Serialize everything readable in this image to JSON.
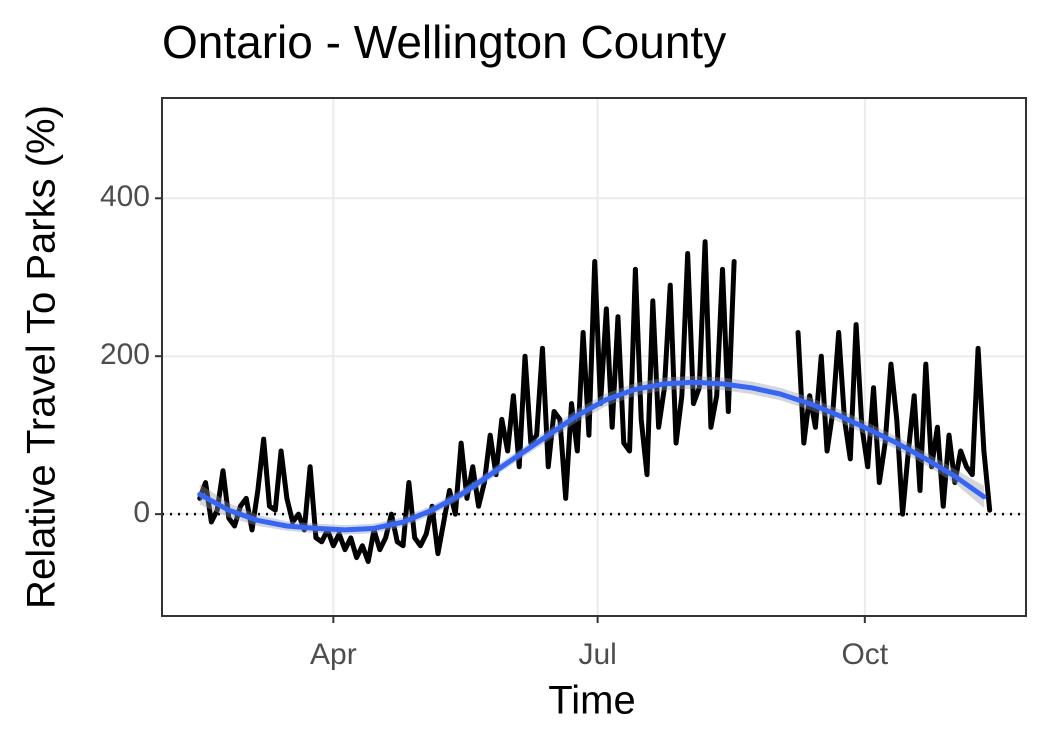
{
  "chart_data": {
    "type": "line",
    "title": "Ontario - Wellington County",
    "x_label": "Time",
    "y_label": "Relative Travel To Parks (%)",
    "xlim": [
      33,
      330.5
    ],
    "xticks": [
      {
        "value": 92,
        "label": "Apr"
      },
      {
        "value": 183,
        "label": "Jul"
      },
      {
        "value": 275,
        "label": "Oct"
      }
    ],
    "ylim": [
      -129,
      527
    ],
    "yticks": [
      0,
      200,
      400
    ],
    "grid": true,
    "reference_line": 0,
    "series": [
      {
        "color": "#000000",
        "x": [
          46,
          48,
          50,
          52,
          54,
          56,
          58,
          60,
          62,
          64,
          66,
          68,
          70,
          72,
          74,
          76,
          78,
          80,
          82,
          84,
          86,
          88,
          90,
          92,
          94,
          96,
          98,
          100,
          102,
          104,
          106,
          108,
          110,
          112,
          114,
          116,
          118,
          120,
          122,
          124,
          126,
          128,
          130,
          132,
          134,
          136,
          138,
          140,
          142,
          144,
          146,
          148,
          150,
          152,
          154,
          156,
          158,
          160,
          162,
          164,
          166,
          168,
          170,
          172,
          174,
          176,
          178,
          180,
          182,
          184,
          186,
          188,
          190,
          192,
          194,
          196,
          198,
          200,
          202,
          204,
          206,
          208,
          210,
          212,
          214,
          216,
          218,
          220,
          222,
          224,
          226,
          228,
          230,
          232,
          234,
          236,
          238,
          240,
          242,
          244,
          246,
          248,
          250,
          252,
          254,
          256,
          258,
          260,
          262,
          264,
          266,
          268,
          270,
          272,
          274,
          276,
          278,
          280,
          282,
          284,
          286,
          288,
          290,
          292,
          294,
          296,
          298,
          300,
          302,
          304,
          306,
          308,
          310,
          312,
          314,
          316,
          318
        ],
        "values": [
          20,
          40,
          -10,
          5,
          55,
          -5,
          -15,
          10,
          20,
          -20,
          30,
          95,
          10,
          5,
          80,
          20,
          -10,
          0,
          -20,
          60,
          -30,
          -35,
          -20,
          -40,
          -25,
          -45,
          -30,
          -55,
          -40,
          -60,
          -20,
          -45,
          -30,
          0,
          -35,
          -40,
          40,
          -30,
          -40,
          -25,
          10,
          -50,
          -10,
          30,
          0,
          90,
          20,
          60,
          10,
          40,
          100,
          50,
          120,
          80,
          150,
          60,
          200,
          90,
          100,
          210,
          60,
          130,
          120,
          20,
          140,
          80,
          230,
          100,
          320,
          140,
          260,
          110,
          250,
          90,
          80,
          310,
          120,
          50,
          270,
          110,
          160,
          290,
          90,
          150,
          330,
          140,
          160,
          345,
          110,
          150,
          310,
          130,
          320,
          null,
          null,
          null,
          null,
          null,
          null,
          null,
          null,
          null,
          null,
          230,
          90,
          150,
          110,
          200,
          80,
          130,
          230,
          120,
          70,
          240,
          110,
          60,
          160,
          40,
          90,
          190,
          120,
          0,
          80,
          150,
          30,
          190,
          60,
          110,
          10,
          100,
          40,
          80,
          60,
          50,
          210,
          80,
          5
        ]
      },
      {
        "color": "#3366ff",
        "x": [
          46,
          56,
          66,
          76,
          86,
          96,
          106,
          116,
          126,
          136,
          146,
          156,
          166,
          176,
          186,
          196,
          206,
          216,
          226,
          236,
          246,
          256,
          266,
          276,
          286,
          296,
          306,
          316
        ],
        "values": [
          25,
          5,
          -8,
          -15,
          -18,
          -20,
          -18,
          -10,
          5,
          25,
          50,
          75,
          100,
          125,
          145,
          158,
          165,
          167,
          165,
          160,
          152,
          140,
          125,
          108,
          90,
          70,
          48,
          22
        ],
        "lower": [
          12,
          -4,
          -15,
          -21,
          -24,
          -26,
          -24,
          -16,
          -1,
          19,
          44,
          69,
          93,
          117,
          137,
          150,
          157,
          159,
          157,
          152,
          144,
          132,
          117,
          100,
          82,
          62,
          39,
          8
        ],
        "upper": [
          38,
          14,
          -1,
          -9,
          -12,
          -14,
          -12,
          -4,
          11,
          31,
          56,
          81,
          107,
          133,
          153,
          166,
          173,
          175,
          173,
          168,
          160,
          148,
          133,
          116,
          98,
          78,
          57,
          36
        ]
      }
    ]
  }
}
